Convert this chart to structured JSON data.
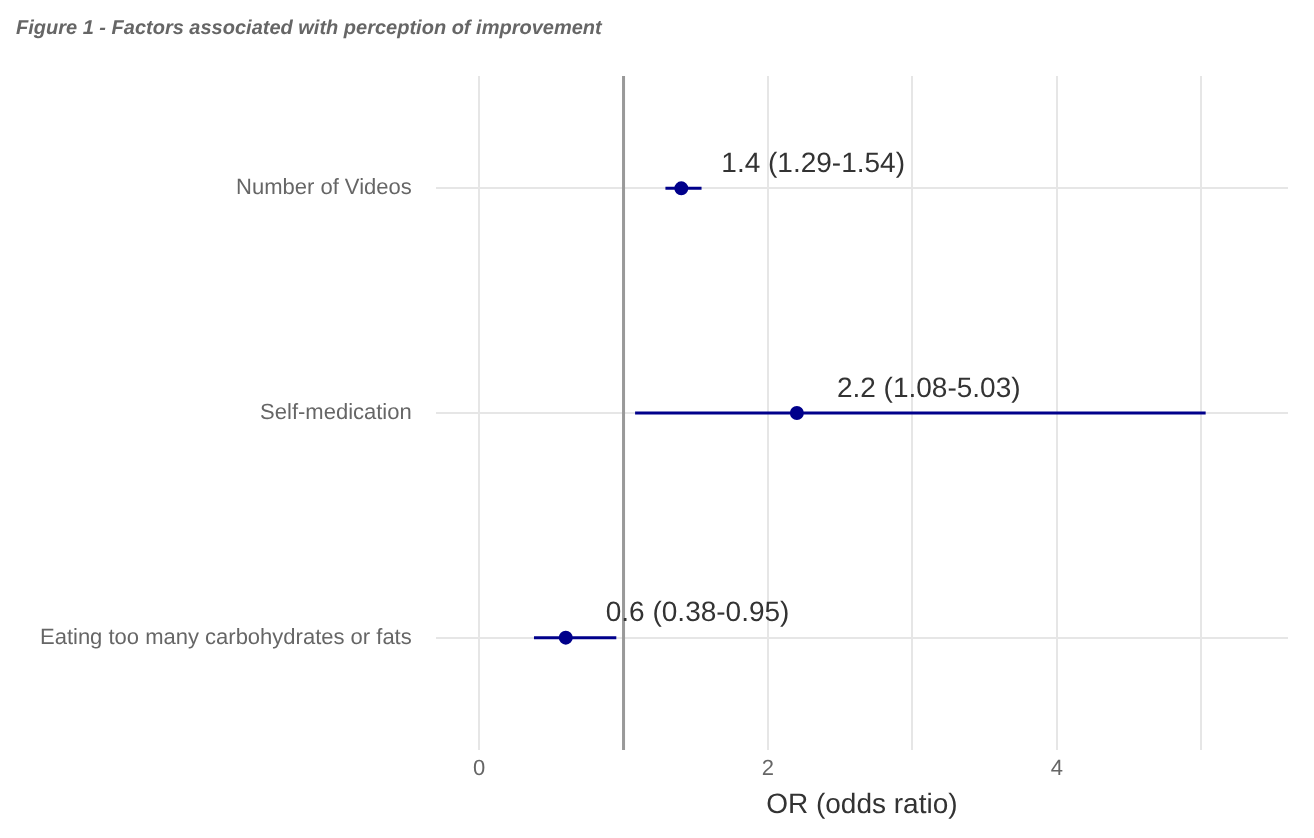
{
  "chart_data": {
    "type": "scatter",
    "orientation": "horizontal",
    "title": "Figure 1 - Factors associated with perception of improvement",
    "xlabel": "OR (odds ratio)",
    "categories": [
      "Number of Videos",
      "Self-medication",
      "Eating too many carbohydrates or fats"
    ],
    "series": [
      {
        "color": "#00008b",
        "values": [
          1.4,
          2.2,
          0.6
        ],
        "errors": [
          [
            1.29,
            1.54
          ],
          [
            1.08,
            5.03
          ],
          [
            0.38,
            0.95
          ]
        ],
        "value_labels": [
          "1.4 (1.29-1.54)",
          "2.2 (1.08-5.03)",
          "0.6 (0.38-0.95)"
        ]
      }
    ],
    "xlim": [
      -0.3,
      5.6
    ],
    "xticks": [
      0,
      {
        "value": 1,
        "label": null
      },
      2,
      {
        "value": 3,
        "label": null
      },
      4,
      {
        "value": 5,
        "label": null
      }
    ],
    "ref_lines": [
      {
        "axis": "x",
        "value": 1,
        "color": "#999999"
      }
    ],
    "grid": true,
    "legend": false,
    "marker": "circle"
  }
}
